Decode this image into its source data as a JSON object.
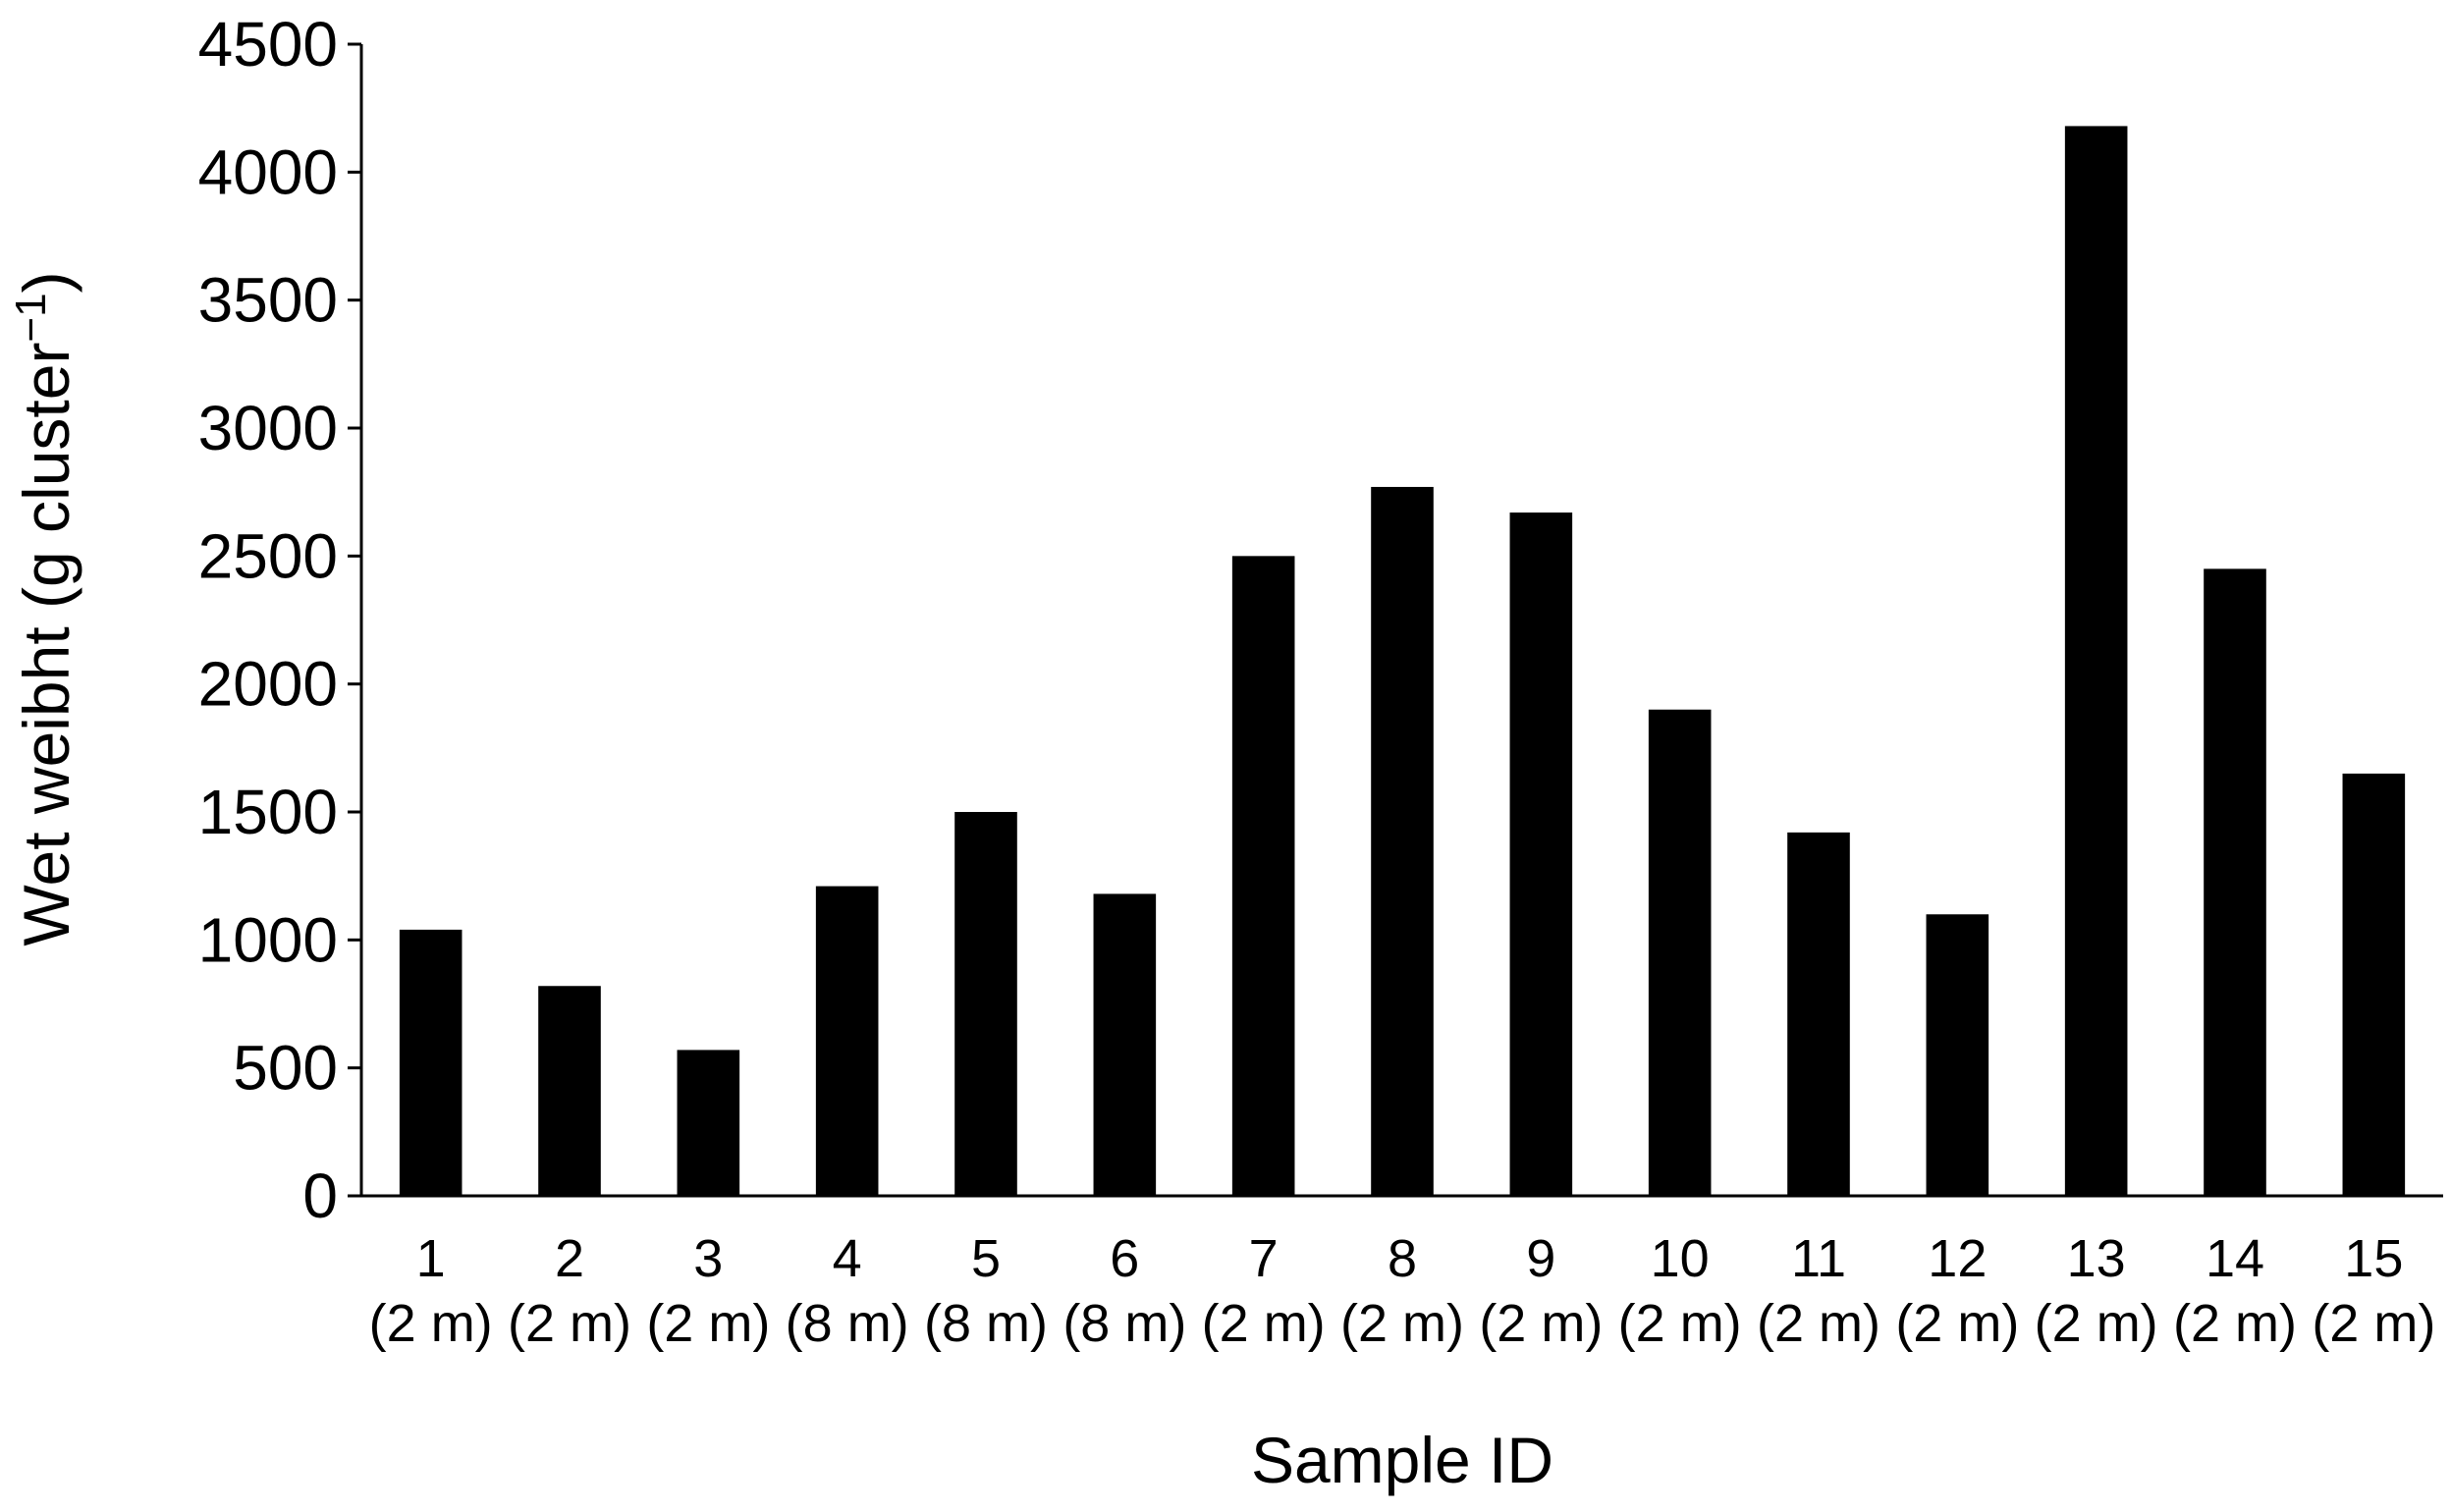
{
  "chart_data": {
    "type": "bar",
    "title": "",
    "categories": [
      "1",
      "2",
      "3",
      "4",
      "5",
      "6",
      "7",
      "8",
      "9",
      "10",
      "11",
      "12",
      "13",
      "14",
      "15"
    ],
    "category_sublabels": [
      "(2 m)",
      "(2 m)",
      "(2 m)",
      "(8 m)",
      "(8 m)",
      "(8 m)",
      "(2 m)",
      "(2 m)",
      "(2 m)",
      "(2 m)",
      "(2 m)",
      "(2 m)",
      "(2 m)",
      "(2 m)",
      "(2 m)"
    ],
    "values": [
      1040,
      820,
      570,
      1210,
      1500,
      1180,
      2500,
      2770,
      2670,
      1900,
      1420,
      1100,
      4180,
      2450,
      1650
    ],
    "xlabel": "Sample ID",
    "ylabel": "Wet weibht  (g cluster",
    "ylabel_superscript": "−1",
    "ylabel_suffix": ")",
    "ylim": [
      0,
      4500
    ],
    "yticks": [
      "0",
      "500",
      "1000",
      "1500",
      "2000",
      "2500",
      "3000",
      "3500",
      "4000",
      "4500"
    ],
    "bar_color": "#000000",
    "grid": false,
    "legend": "none"
  }
}
